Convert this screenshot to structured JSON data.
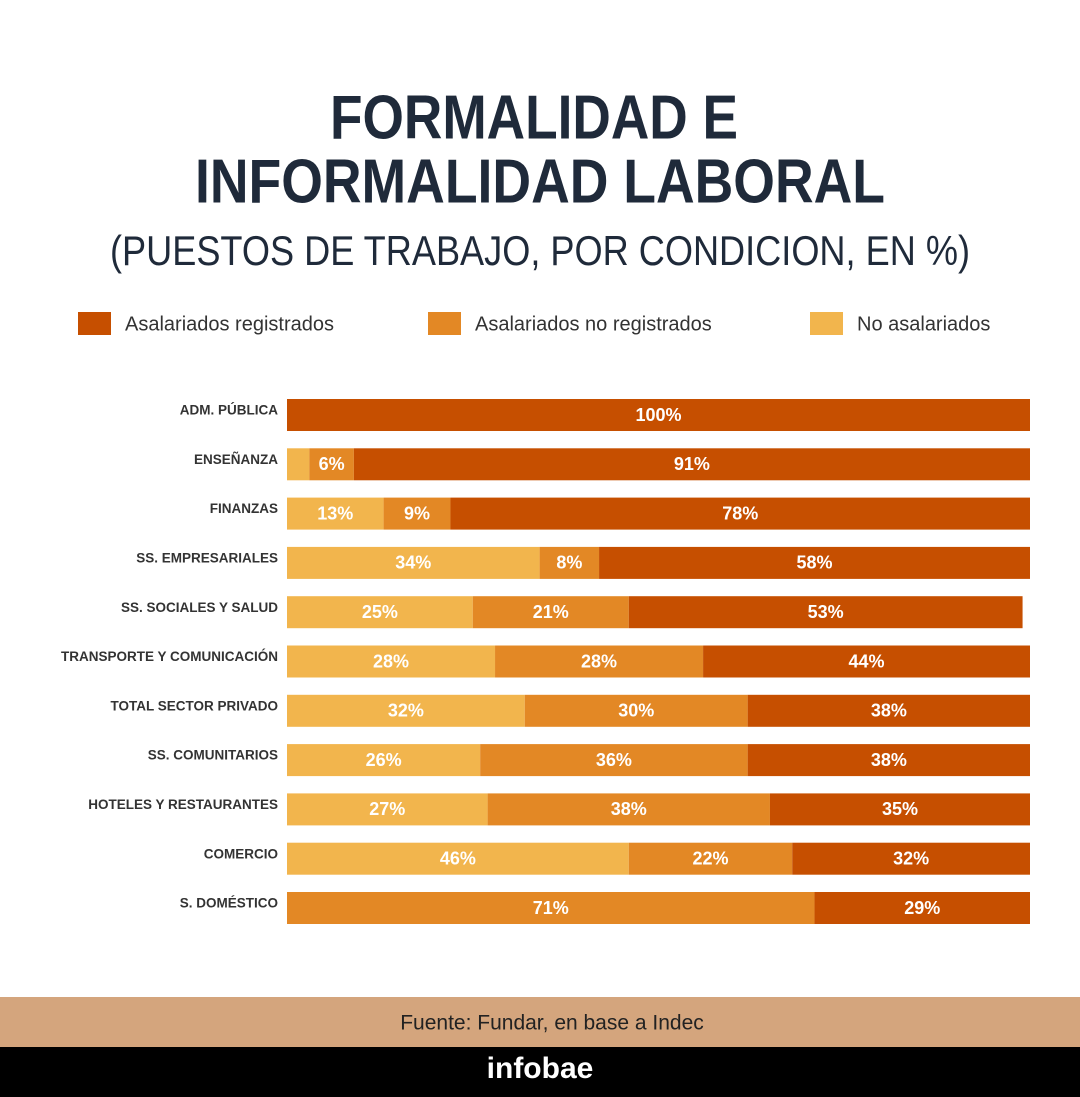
{
  "chart_data": {
    "type": "stacked-barh",
    "title": [
      "FORMALIDAD E",
      "INFORMALIDAD LABORAL"
    ],
    "subtitle": "(PUESTOS DE TRABAJO, POR CONDICION, EN %)",
    "categories": [
      "ADM. PÚBLICA",
      "ENSEÑANZA",
      "FINANZAS",
      "SS. EMPRESARIALES",
      "SS. SOCIALES Y SALUD",
      "TRANSPORTE Y COMUNICACIÓN",
      "TOTAL SECTOR PRIVADO",
      "SS. COMUNITARIOS",
      "HOTELES Y RESTAURANTES",
      "COMERCIO",
      "S. DOMÉSTICO"
    ],
    "series": [
      {
        "name": "Asalariados registrados",
        "color": "#c64f00",
        "values": [
          100,
          91,
          78,
          58,
          53,
          44,
          38,
          38,
          35,
          32,
          29
        ],
        "value_labels": [
          "100%",
          "91%",
          "78%",
          "58%",
          "53%",
          "44%",
          "38%",
          "38%",
          "35%",
          "32%",
          "29%"
        ]
      },
      {
        "name": "Asalariados no registrados",
        "color": "#e38825",
        "values": [
          0,
          6,
          9,
          8,
          21,
          28,
          30,
          36,
          38,
          22,
          71
        ],
        "value_labels": [
          null,
          "6%",
          "9%",
          "8%",
          "21%",
          "28%",
          "30%",
          "36%",
          "38%",
          "22%",
          "71%"
        ]
      },
      {
        "name": "No asalariados",
        "color": "#f2b54d",
        "values": [
          0,
          3,
          13,
          34,
          25,
          28,
          32,
          26,
          27,
          46,
          0
        ],
        "value_labels": [
          null,
          null,
          "13%",
          "34%",
          "25%",
          "28%",
          "32%",
          "26%",
          "27%",
          "46%",
          null
        ]
      }
    ],
    "xlim": [
      0,
      100
    ],
    "source": "Fuente: Fundar, en base a Indec",
    "brand": "infobae"
  }
}
